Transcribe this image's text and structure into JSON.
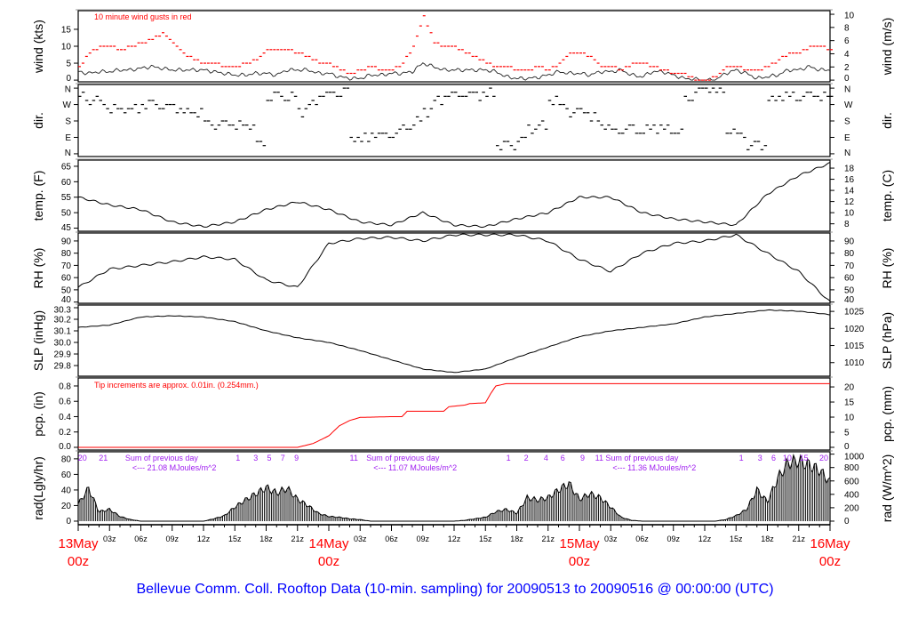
{
  "chart_data": {
    "type": "line",
    "title": "Bellevue Comm. Coll. Rooftop Data (10-min. sampling) for 20090513  to  20090516 @ 00:00:00  (UTC)",
    "x_unit": "hours since 13May 00z",
    "xlim": [
      0,
      72
    ],
    "x_ticks": [
      {
        "h": 3,
        "label": "03z"
      },
      {
        "h": 6,
        "label": "06z"
      },
      {
        "h": 9,
        "label": "09z"
      },
      {
        "h": 12,
        "label": "12z"
      },
      {
        "h": 15,
        "label": "15z"
      },
      {
        "h": 18,
        "label": "18z"
      },
      {
        "h": 21,
        "label": "21z"
      },
      {
        "h": 27,
        "label": "03z"
      },
      {
        "h": 30,
        "label": "06z"
      },
      {
        "h": 33,
        "label": "09z"
      },
      {
        "h": 36,
        "label": "12z"
      },
      {
        "h": 39,
        "label": "15z"
      },
      {
        "h": 42,
        "label": "18z"
      },
      {
        "h": 45,
        "label": "21z"
      },
      {
        "h": 51,
        "label": "03z"
      },
      {
        "h": 54,
        "label": "06z"
      },
      {
        "h": 57,
        "label": "09z"
      },
      {
        "h": 60,
        "label": "12z"
      },
      {
        "h": 63,
        "label": "15z"
      },
      {
        "h": 66,
        "label": "18z"
      },
      {
        "h": 69,
        "label": "21z"
      }
    ],
    "date_labels": [
      {
        "h": 0,
        "date": "13May",
        "time": "00z"
      },
      {
        "h": 24,
        "date": "14May",
        "time": "00z"
      },
      {
        "h": 48,
        "date": "15May",
        "time": "00z"
      },
      {
        "h": 72,
        "date": "16May",
        "time": "00z"
      }
    ],
    "colors": {
      "main": "#000000",
      "gust": "#ff0000",
      "precip": "#ff0000",
      "dates": "#ff0000",
      "title": "#0000ff",
      "rad_notes": "#a020f0"
    },
    "panels": {
      "wind": {
        "ylabel": "wind (kts)",
        "ylabel_right": "wind (m/s)",
        "ylim": [
          -0.5,
          20.5
        ],
        "ticks_left": [
          0,
          5,
          10,
          15
        ],
        "ticks_right": [
          0,
          2,
          4,
          6,
          8,
          10
        ],
        "annotation": "10  minute wind gusts in red",
        "mean_kts": [
          2.5,
          2,
          2.5,
          2.5,
          3,
          3,
          3.5,
          4,
          3.5,
          3,
          3,
          3,
          3,
          2.5,
          2,
          1.5,
          1.5,
          2,
          2,
          1.5,
          3,
          3,
          3,
          2,
          2,
          1,
          0.5,
          0.5,
          1.5,
          1.5,
          2,
          2,
          2.5,
          5,
          4,
          3,
          3,
          3,
          3,
          3,
          2.5,
          1,
          0.5,
          0.5,
          0.8,
          1.5,
          2.5,
          2,
          2,
          1.5,
          2.5,
          2.5,
          3,
          1.5,
          1,
          2.5,
          2.5,
          1.5,
          0.5,
          0.3,
          0,
          0,
          2,
          3,
          2,
          0.5,
          1,
          1.5,
          3,
          3,
          4,
          3,
          3
        ],
        "gust_kts": [
          4,
          8,
          10,
          10,
          9,
          10,
          11,
          12,
          14,
          11,
          8,
          6,
          5,
          5,
          4,
          4,
          5,
          6,
          9,
          9,
          9,
          8,
          7,
          5,
          5,
          3,
          2,
          3,
          4,
          3,
          3,
          5,
          10,
          19,
          11,
          10,
          10,
          8,
          7,
          5,
          4,
          4,
          3,
          3,
          4,
          3,
          5,
          8,
          8,
          7,
          4,
          4,
          3,
          5,
          5,
          4,
          3,
          2,
          2,
          0,
          0,
          1,
          4,
          4,
          3,
          3,
          4,
          6,
          8,
          8,
          10,
          10,
          9
        ]
      },
      "dir": {
        "ylabel": "dir.",
        "ylabel_right": "dir.",
        "ylim": [
          -15,
          380
        ],
        "ticks": [
          {
            "v": 360,
            "label": "N"
          },
          {
            "v": 270,
            "label": "W"
          },
          {
            "v": 180,
            "label": "S"
          },
          {
            "v": 90,
            "label": "E"
          },
          {
            "v": 0,
            "label": "N"
          }
        ],
        "deg": [
          315,
          290,
          270,
          250,
          240,
          250,
          270,
          270,
          260,
          240,
          230,
          225,
          180,
          160,
          160,
          160,
          150,
          60,
          310,
          315,
          320,
          230,
          280,
          320,
          330,
          340,
          80,
          90,
          100,
          110,
          120,
          140,
          180,
          230,
          300,
          320,
          320,
          330,
          325,
          330,
          45,
          50,
          80,
          130,
          160,
          290,
          260,
          230,
          230,
          200,
          150,
          130,
          130,
          130,
          140,
          135,
          135,
          120,
          300,
          360,
          360,
          355,
          120,
          110,
          50,
          40,
          300,
          310,
          320,
          315,
          320,
          310,
          310
        ]
      },
      "temp": {
        "ylabel": "temp. (F)",
        "ylabel_right": "temp. (C)",
        "ylim": [
          44,
          67
        ],
        "ticks_left": [
          45,
          50,
          55,
          60,
          65
        ],
        "ticks_right": [
          8,
          10,
          12,
          14,
          16,
          18
        ],
        "step_h": 3,
        "values_F": [
          55,
          52.5,
          51,
          47,
          45.5,
          47,
          51,
          53.5,
          51,
          47,
          46,
          50,
          46,
          45.5,
          48,
          50,
          55,
          55,
          50,
          48,
          47,
          46,
          56,
          62,
          66
        ]
      },
      "rh": {
        "ylabel": "RH (%)",
        "ylabel_right": "RH (%)",
        "ylim": [
          39,
          96.5
        ],
        "ticks": [
          40,
          50,
          60,
          70,
          80,
          90
        ],
        "step_h": 3,
        "values": [
          52,
          67,
          70,
          73,
          77,
          75,
          58,
          52,
          88,
          92,
          93,
          90,
          95,
          95,
          95,
          90,
          75,
          65,
          80,
          88,
          90,
          95,
          80,
          65,
          40
        ]
      },
      "slp": {
        "ylabel": "SLP (inHg)",
        "ylabel_right": "SLP (hPa)",
        "ylim": [
          29.708,
          30.323
        ],
        "ticks_left": [
          29.8,
          29.9,
          30.0,
          30.1,
          30.2,
          30.3
        ],
        "ticks_right": [
          1010,
          1015,
          1020,
          1025
        ],
        "step_h": 3,
        "values_inHg": [
          30.13,
          30.15,
          30.22,
          30.23,
          30.22,
          30.18,
          30.1,
          30.04,
          30.0,
          29.93,
          29.85,
          29.77,
          29.74,
          29.77,
          29.87,
          29.96,
          30.05,
          30.1,
          30.13,
          30.16,
          30.22,
          30.25,
          30.28,
          30.27,
          30.24
        ]
      },
      "pcp": {
        "ylabel": "pcp. (in)",
        "ylabel_right": "pcp. (mm)",
        "ylim": [
          -0.035,
          0.904
        ],
        "ticks_left": [
          0.0,
          0.2,
          0.4,
          0.6,
          0.8
        ],
        "ticks_right": [
          0,
          5,
          10,
          15,
          20
        ],
        "annotation": "Tip increments are approx. 0.01in. (0.254mm.)",
        "points": [
          [
            0,
            0
          ],
          [
            21,
            0
          ],
          [
            22.5,
            0.05
          ],
          [
            24,
            0.15
          ],
          [
            25,
            0.28
          ],
          [
            26,
            0.35
          ],
          [
            27,
            0.39
          ],
          [
            30,
            0.4
          ],
          [
            31,
            0.4
          ],
          [
            31.5,
            0.47
          ],
          [
            35,
            0.47
          ],
          [
            35.5,
            0.53
          ],
          [
            37,
            0.55
          ],
          [
            37.5,
            0.57
          ],
          [
            39,
            0.58
          ],
          [
            39.5,
            0.7
          ],
          [
            40,
            0.8
          ],
          [
            41,
            0.83
          ],
          [
            72,
            0.83
          ]
        ]
      },
      "rad": {
        "ylabel": "rad(Lgly/hr)",
        "ylabel_right": "rad (W/m^2)",
        "ylim": [
          -4.6,
          89
        ],
        "ticks_left": [
          0,
          20,
          40,
          60,
          80
        ],
        "ticks_right": [
          0,
          200,
          400,
          600,
          800,
          1000
        ],
        "values_lgly": [
          22,
          42,
          12,
          15,
          6,
          2,
          0,
          0,
          0,
          0,
          0,
          0,
          0,
          3,
          7,
          18,
          27,
          35,
          43,
          36,
          42,
          28,
          20,
          10,
          6,
          5,
          3,
          2,
          0,
          0,
          0,
          0,
          0,
          0,
          0,
          0,
          0,
          1,
          3,
          5,
          12,
          15,
          10,
          30,
          27,
          30,
          40,
          48,
          28,
          35,
          30,
          18,
          5,
          1,
          0,
          0,
          0,
          0,
          0,
          0,
          0,
          0,
          2,
          7,
          15,
          40,
          25,
          55,
          75,
          77,
          72,
          65,
          50
        ],
        "hour_marks": [
          {
            "h": 0.4,
            "label": "20"
          },
          {
            "h": 2.4,
            "label": "21"
          },
          {
            "h": 15.3,
            "label": "1"
          },
          {
            "h": 17.0,
            "label": "3"
          },
          {
            "h": 18.3,
            "label": "5"
          },
          {
            "h": 19.6,
            "label": "7"
          },
          {
            "h": 20.9,
            "label": "9"
          },
          {
            "h": 26.4,
            "label": "11"
          },
          {
            "h": 41.2,
            "label": "1"
          },
          {
            "h": 42.9,
            "label": "2"
          },
          {
            "h": 44.8,
            "label": "4"
          },
          {
            "h": 46.4,
            "label": "6"
          },
          {
            "h": 48.3,
            "label": "9"
          },
          {
            "h": 49.9,
            "label": "11"
          },
          {
            "h": 63.5,
            "label": "1"
          },
          {
            "h": 65.3,
            "label": "3"
          },
          {
            "h": 66.6,
            "label": "6"
          },
          {
            "h": 67.9,
            "label": "10"
          },
          {
            "h": 69.5,
            "label": "15"
          },
          {
            "h": 71.4,
            "label": "20"
          }
        ],
        "daily_sums": [
          {
            "h": 4.5,
            "label": "Sum of previous day",
            "value": "<--- 21.08 MJoules/m^2"
          },
          {
            "h": 27.6,
            "label": "Sum of previous day",
            "value": "<--- 11.07 MJoules/m^2"
          },
          {
            "h": 50.5,
            "label": "Sum of previous day",
            "value": "<--- 11.36 MJoules/m^2"
          }
        ]
      }
    }
  }
}
